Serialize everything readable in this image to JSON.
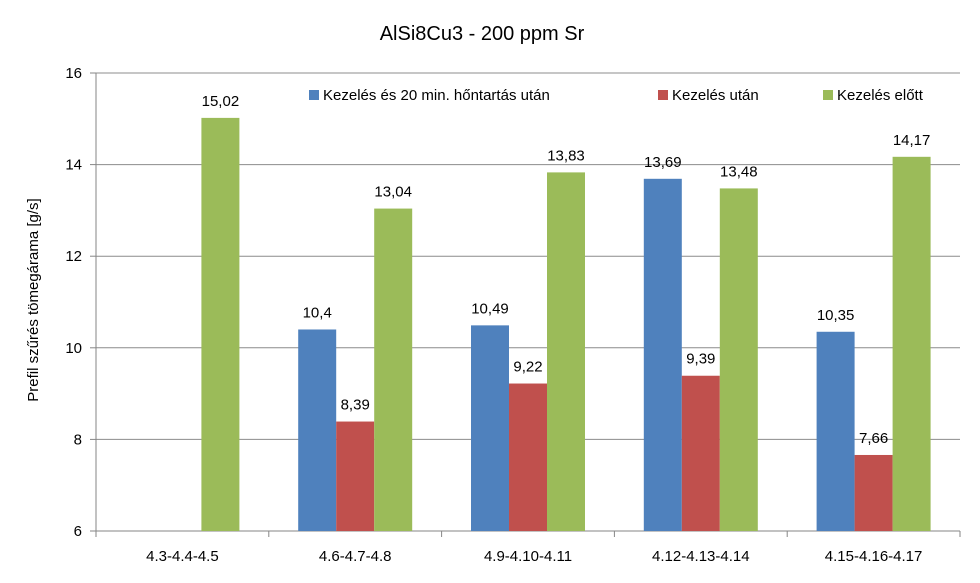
{
  "chart_data": {
    "type": "bar",
    "title": "AlSi8Cu3 - 200 ppm Sr",
    "xlabel": "",
    "ylabel": "Prefil szűrés tömegárama [g/s]",
    "ylim": [
      6,
      16
    ],
    "yticks": [
      6,
      8,
      10,
      12,
      14,
      16
    ],
    "grid": true,
    "legend_position": "top-right",
    "categories": [
      "4.3-4.4-4.5",
      "4.6-4.7-4.8",
      "4.9-4.10-4.11",
      "4.12-4.13-4.14",
      "4.15-4.16-4.17"
    ],
    "series": [
      {
        "name": "Kezelés és 20 min. hőntartás után",
        "color": "#4F81BD",
        "values": [
          null,
          10.4,
          10.49,
          13.69,
          10.35
        ],
        "labels": [
          "",
          "10,4",
          "10,49",
          "13,69",
          "10,35"
        ]
      },
      {
        "name": "Kezelés után",
        "color": "#C0504D",
        "values": [
          null,
          8.39,
          9.22,
          9.39,
          7.66
        ],
        "labels": [
          "",
          "8,39",
          "9,22",
          "9,39",
          "7,66"
        ]
      },
      {
        "name": "Kezelés előtt",
        "color": "#9BBB59",
        "values": [
          15.02,
          13.04,
          13.83,
          13.48,
          14.17
        ],
        "labels": [
          "15,02",
          "13,04",
          "13,83",
          "13,48",
          "14,17"
        ]
      }
    ]
  }
}
